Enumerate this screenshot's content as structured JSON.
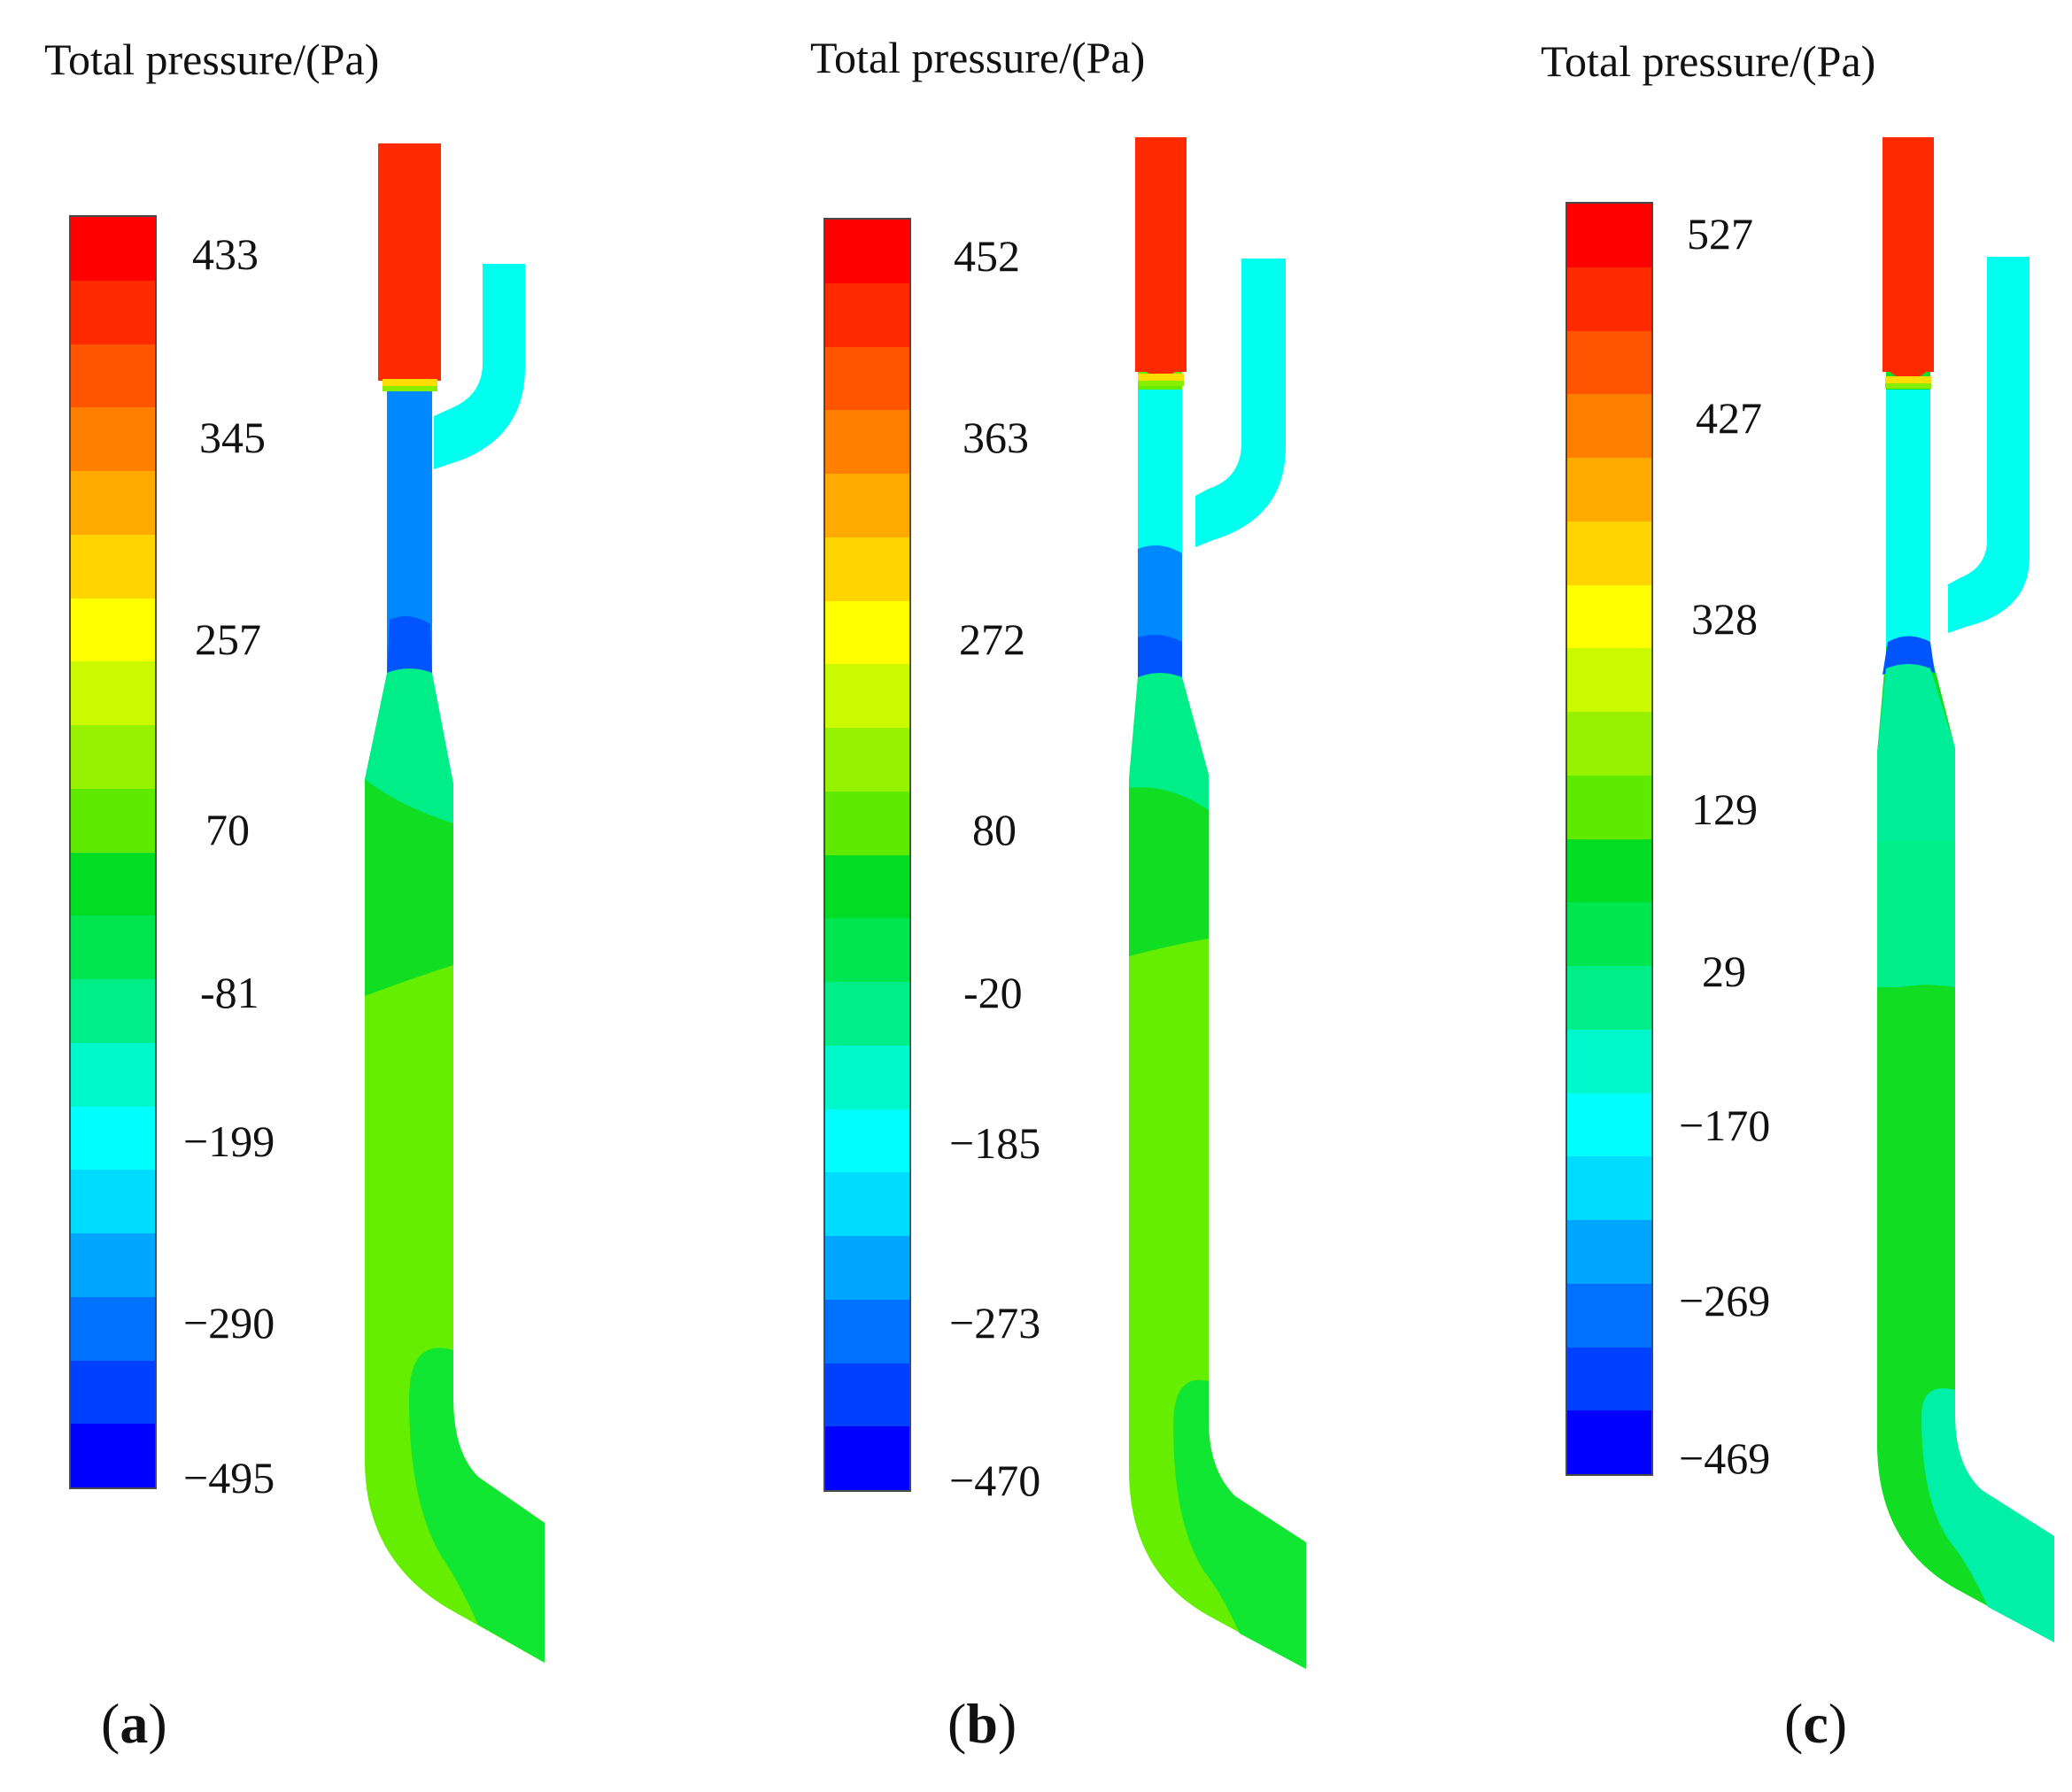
{
  "colors": [
    "#ff0000",
    "#ff2a00",
    "#ff5500",
    "#ff8000",
    "#ffaa00",
    "#ffd400",
    "#ffff00",
    "#cbfa00",
    "#96f200",
    "#60ea00",
    "#00dd22",
    "#00e650",
    "#00ee88",
    "#00f8cc",
    "#00ffff",
    "#00dcff",
    "#00a6ff",
    "#0070ff",
    "#0040ff",
    "#0000ff"
  ],
  "panels": [
    {
      "id": "a",
      "title": "Total pressure/(Pa)",
      "label_open": "(",
      "label_letter": "a",
      "label_close": ")",
      "ticks": [
        "433",
        "345",
        "257",
        "70",
        "-81",
        "−199",
        "−290",
        "−495"
      ],
      "contour": {
        "inlet": "#ff2a00",
        "branch": "#00ffee",
        "throat": "#0088ff",
        "throat_core": "#0055ff",
        "diffuser": "#00ee88",
        "upper_column": "#11dd22",
        "lower_column": "#66ee00",
        "elbow": "#11e633"
      }
    },
    {
      "id": "b",
      "title": "Total pressure/(Pa)",
      "label_open": "(",
      "label_letter": "b",
      "label_close": ")",
      "ticks": [
        "452",
        "363",
        "272",
        "80",
        "-20",
        "−185",
        "−273",
        "−470"
      ],
      "contour": {
        "inlet": "#ff2a00",
        "branch": "#00ffee",
        "throat": "#0088ff",
        "throat_core": "#0055ff",
        "diffuser": "#00ee88",
        "upper_column": "#11dd22",
        "lower_column": "#66ee00",
        "elbow": "#11e633"
      }
    },
    {
      "id": "c",
      "title": "Total pressure/(Pa)",
      "label_open": "(",
      "label_letter": "c",
      "label_close": ")",
      "ticks": [
        "527",
        "427",
        "328",
        "129",
        "29",
        "−170",
        "−269",
        "−469"
      ],
      "contour": {
        "inlet": "#ff2a00",
        "branch": "#00ffee",
        "throat": "#00ccee",
        "throat_core": "#0055ff",
        "diffuser": "#00ee99",
        "upper_column": "#00ee88",
        "lower_column": "#11dd22",
        "elbow": "#00f0a8"
      }
    }
  ]
}
